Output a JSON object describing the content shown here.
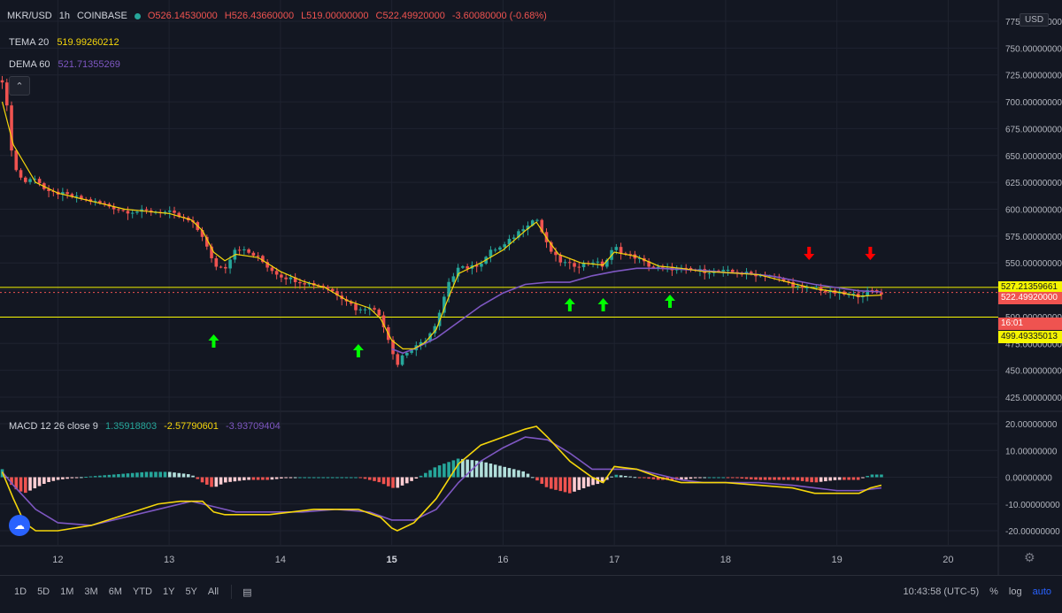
{
  "legend": {
    "symbol": "MKR/USD",
    "interval": "1h",
    "exchange": "COINBASE",
    "open": "O526.14530000",
    "high": "H526.43660000",
    "low": "L519.00000000",
    "close": "C522.49920000",
    "change": "-3.60080000 (-0.68%)"
  },
  "indicators": [
    {
      "name": "TEMA 20",
      "value": "519.99260212",
      "color": "#f5d60b"
    },
    {
      "name": "DEMA 60",
      "value": "521.71355269",
      "color": "#7e57c2"
    }
  ],
  "macd_legend": {
    "name": "MACD 12 26 close 9",
    "hist": "1.35918803",
    "macd": "-2.57790601",
    "signal": "-3.93709404"
  },
  "price_axis": {
    "currency": "USD",
    "ticks": [
      "775.00000000",
      "750.00000000",
      "725.00000000",
      "700.00000000",
      "675.00000000",
      "650.00000000",
      "625.00000000",
      "600.00000000",
      "575.00000000",
      "550.00000000",
      "525.00000000",
      "500.00000000",
      "475.00000000",
      "450.00000000",
      "425.00000000"
    ],
    "tick_values": [
      775,
      750,
      725,
      700,
      675,
      650,
      625,
      600,
      575,
      550,
      525,
      500,
      475,
      450,
      425
    ]
  },
  "macd_axis": {
    "ticks": [
      "20.00000000",
      "10.00000000",
      "0.00000000",
      "-10.00000000",
      "-20.00000000"
    ],
    "tick_values": [
      20,
      10,
      0,
      -10,
      -20
    ]
  },
  "price_tags": [
    {
      "label": "527.21359661",
      "bg": "#f5f500",
      "fg": "#131722",
      "value": 527.21
    },
    {
      "label": "522.49920000",
      "bg": "#ef5350",
      "fg": "#ffffff",
      "value": 522.5
    },
    {
      "label": "16:01",
      "bg": "#ef5350",
      "fg": "#ffffff",
      "value": 500.0
    },
    {
      "label": "499.49335013",
      "bg": "#f5f500",
      "fg": "#131722",
      "value": 499.49
    }
  ],
  "time_axis": {
    "labels": [
      "12",
      "13",
      "14",
      "15",
      "16",
      "17",
      "18",
      "19",
      "20"
    ],
    "bold": [
      "15"
    ]
  },
  "timeframes": [
    "1D",
    "5D",
    "1M",
    "3M",
    "6M",
    "YTD",
    "1Y",
    "5Y",
    "All"
  ],
  "bottom_right": {
    "clock": "10:43:58 (UTC-5)",
    "percent": "%",
    "log": "log",
    "auto": "auto"
  },
  "colors": {
    "up": "#26a69a",
    "down": "#ef5350",
    "tema": "#f5d60b",
    "dema": "#7e57c2",
    "hline": "#f5f500",
    "arrow_up": "#00ff00",
    "arrow_down": "#ff0000"
  },
  "chart_data": {
    "type": "candlestick",
    "x_unit": "day",
    "price_levels": [
      527.21,
      499.49
    ],
    "buy_signals_day": [
      13.4,
      14.7,
      16.6,
      16.9,
      17.5
    ],
    "sell_signals_day": [
      18.75,
      19.3
    ],
    "price_path": [
      [
        11.5,
        720
      ],
      [
        11.55,
        690
      ],
      [
        11.6,
        640
      ],
      [
        11.7,
        625
      ],
      [
        11.8,
        630
      ],
      [
        11.9,
        615
      ],
      [
        12.0,
        615
      ],
      [
        12.2,
        610
      ],
      [
        12.4,
        605
      ],
      [
        12.6,
        598
      ],
      [
        12.8,
        598
      ],
      [
        13.0,
        597
      ],
      [
        13.2,
        588
      ],
      [
        13.3,
        575
      ],
      [
        13.4,
        548
      ],
      [
        13.5,
        545
      ],
      [
        13.6,
        565
      ],
      [
        13.7,
        560
      ],
      [
        13.8,
        555
      ],
      [
        13.9,
        545
      ],
      [
        14.0,
        538
      ],
      [
        14.2,
        532
      ],
      [
        14.4,
        528
      ],
      [
        14.6,
        515
      ],
      [
        14.7,
        505
      ],
      [
        14.8,
        510
      ],
      [
        14.9,
        500
      ],
      [
        15.0,
        470
      ],
      [
        15.05,
        455
      ],
      [
        15.1,
        465
      ],
      [
        15.2,
        470
      ],
      [
        15.3,
        478
      ],
      [
        15.4,
        492
      ],
      [
        15.5,
        528
      ],
      [
        15.6,
        548
      ],
      [
        15.7,
        545
      ],
      [
        15.8,
        550
      ],
      [
        15.9,
        562
      ],
      [
        16.0,
        565
      ],
      [
        16.1,
        575
      ],
      [
        16.2,
        585
      ],
      [
        16.3,
        592
      ],
      [
        16.4,
        565
      ],
      [
        16.5,
        552
      ],
      [
        16.6,
        548
      ],
      [
        16.7,
        548
      ],
      [
        16.8,
        552
      ],
      [
        16.9,
        547
      ],
      [
        17.0,
        565
      ],
      [
        17.1,
        558
      ],
      [
        17.2,
        555
      ],
      [
        17.3,
        548
      ],
      [
        17.4,
        545
      ],
      [
        17.5,
        545
      ],
      [
        17.7,
        543
      ],
      [
        17.9,
        542
      ],
      [
        18.0,
        542
      ],
      [
        18.2,
        540
      ],
      [
        18.4,
        538
      ],
      [
        18.6,
        530
      ],
      [
        18.7,
        525
      ],
      [
        18.8,
        528
      ],
      [
        18.9,
        523
      ],
      [
        19.0,
        522
      ],
      [
        19.1,
        520
      ],
      [
        19.2,
        520
      ],
      [
        19.3,
        524
      ],
      [
        19.4,
        522
      ]
    ],
    "tema_path": [
      [
        11.5,
        700
      ],
      [
        11.6,
        660
      ],
      [
        11.8,
        625
      ],
      [
        12.0,
        615
      ],
      [
        12.2,
        610
      ],
      [
        12.4,
        605
      ],
      [
        12.6,
        600
      ],
      [
        12.8,
        598
      ],
      [
        13.0,
        596
      ],
      [
        13.2,
        590
      ],
      [
        13.3,
        580
      ],
      [
        13.4,
        560
      ],
      [
        13.5,
        552
      ],
      [
        13.6,
        558
      ],
      [
        13.8,
        555
      ],
      [
        14.0,
        542
      ],
      [
        14.2,
        533
      ],
      [
        14.4,
        527
      ],
      [
        14.6,
        515
      ],
      [
        14.8,
        508
      ],
      [
        14.9,
        498
      ],
      [
        15.0,
        478
      ],
      [
        15.1,
        470
      ],
      [
        15.2,
        470
      ],
      [
        15.3,
        476
      ],
      [
        15.4,
        488
      ],
      [
        15.5,
        515
      ],
      [
        15.6,
        540
      ],
      [
        15.8,
        550
      ],
      [
        16.0,
        562
      ],
      [
        16.2,
        580
      ],
      [
        16.3,
        588
      ],
      [
        16.4,
        572
      ],
      [
        16.5,
        558
      ],
      [
        16.7,
        550
      ],
      [
        16.9,
        548
      ],
      [
        17.0,
        560
      ],
      [
        17.2,
        556
      ],
      [
        17.4,
        547
      ],
      [
        17.6,
        545
      ],
      [
        17.8,
        542
      ],
      [
        18.0,
        541
      ],
      [
        18.3,
        539
      ],
      [
        18.6,
        531
      ],
      [
        18.8,
        526
      ],
      [
        19.0,
        523
      ],
      [
        19.2,
        519
      ],
      [
        19.4,
        520
      ]
    ],
    "dema_path": [
      [
        15.0,
        470
      ],
      [
        15.1,
        466
      ],
      [
        15.2,
        470
      ],
      [
        15.4,
        480
      ],
      [
        15.6,
        495
      ],
      [
        15.8,
        510
      ],
      [
        16.0,
        522
      ],
      [
        16.2,
        530
      ],
      [
        16.4,
        532
      ],
      [
        16.6,
        532
      ],
      [
        16.8,
        538
      ],
      [
        17.0,
        542
      ],
      [
        17.2,
        545
      ],
      [
        17.4,
        545
      ],
      [
        17.6,
        544
      ],
      [
        17.8,
        543
      ],
      [
        18.0,
        541
      ],
      [
        18.2,
        540
      ],
      [
        18.4,
        538
      ],
      [
        18.6,
        534
      ],
      [
        18.8,
        530
      ],
      [
        19.0,
        527
      ],
      [
        19.2,
        524
      ],
      [
        19.4,
        523
      ]
    ],
    "macd_path": [
      [
        11.5,
        2
      ],
      [
        11.6,
        -8
      ],
      [
        11.7,
        -17
      ],
      [
        11.8,
        -20
      ],
      [
        12.0,
        -20
      ],
      [
        12.3,
        -18
      ],
      [
        12.6,
        -14
      ],
      [
        12.9,
        -10
      ],
      [
        13.1,
        -9
      ],
      [
        13.3,
        -9
      ],
      [
        13.4,
        -13
      ],
      [
        13.5,
        -14
      ],
      [
        13.7,
        -14
      ],
      [
        13.9,
        -14
      ],
      [
        14.1,
        -13
      ],
      [
        14.3,
        -12
      ],
      [
        14.5,
        -12
      ],
      [
        14.7,
        -12
      ],
      [
        14.9,
        -15
      ],
      [
        15.0,
        -19
      ],
      [
        15.05,
        -20
      ],
      [
        15.2,
        -17
      ],
      [
        15.4,
        -8
      ],
      [
        15.6,
        5
      ],
      [
        15.8,
        12
      ],
      [
        16.0,
        15
      ],
      [
        16.2,
        18
      ],
      [
        16.3,
        19
      ],
      [
        16.4,
        15
      ],
      [
        16.6,
        6
      ],
      [
        16.8,
        0
      ],
      [
        16.9,
        -2
      ],
      [
        17.0,
        4
      ],
      [
        17.2,
        3
      ],
      [
        17.4,
        0
      ],
      [
        17.6,
        -2
      ],
      [
        17.8,
        -2
      ],
      [
        18.0,
        -2
      ],
      [
        18.3,
        -3
      ],
      [
        18.6,
        -4
      ],
      [
        18.8,
        -6
      ],
      [
        19.0,
        -6
      ],
      [
        19.2,
        -6
      ],
      [
        19.3,
        -4
      ],
      [
        19.4,
        -3
      ]
    ],
    "signal_path": [
      [
        11.5,
        2
      ],
      [
        11.6,
        -3
      ],
      [
        11.8,
        -12
      ],
      [
        12.0,
        -17
      ],
      [
        12.3,
        -18
      ],
      [
        12.6,
        -15
      ],
      [
        12.9,
        -12
      ],
      [
        13.2,
        -9
      ],
      [
        13.4,
        -11
      ],
      [
        13.6,
        -13
      ],
      [
        13.9,
        -13
      ],
      [
        14.2,
        -13
      ],
      [
        14.5,
        -12
      ],
      [
        14.8,
        -13
      ],
      [
        15.0,
        -16
      ],
      [
        15.2,
        -16
      ],
      [
        15.4,
        -12
      ],
      [
        15.6,
        -2
      ],
      [
        15.8,
        6
      ],
      [
        16.0,
        11
      ],
      [
        16.2,
        15
      ],
      [
        16.4,
        14
      ],
      [
        16.6,
        9
      ],
      [
        16.8,
        3
      ],
      [
        17.0,
        3
      ],
      [
        17.2,
        3
      ],
      [
        17.4,
        1
      ],
      [
        17.6,
        -1
      ],
      [
        17.8,
        -2
      ],
      [
        18.0,
        -2
      ],
      [
        18.3,
        -2
      ],
      [
        18.6,
        -3
      ],
      [
        18.8,
        -4
      ],
      [
        19.0,
        -5
      ],
      [
        19.2,
        -5
      ],
      [
        19.4,
        -4
      ]
    ],
    "hist_path": [
      [
        11.5,
        3
      ],
      [
        11.6,
        -4
      ],
      [
        11.7,
        -6
      ],
      [
        11.8,
        -4
      ],
      [
        11.9,
        -2
      ],
      [
        12.0,
        -1
      ],
      [
        12.2,
        0
      ],
      [
        12.5,
        1
      ],
      [
        12.8,
        2
      ],
      [
        13.0,
        2
      ],
      [
        13.2,
        1
      ],
      [
        13.3,
        -2
      ],
      [
        13.4,
        -4
      ],
      [
        13.5,
        -2
      ],
      [
        13.7,
        -1
      ],
      [
        13.9,
        -1
      ],
      [
        14.1,
        0
      ],
      [
        14.3,
        0
      ],
      [
        14.5,
        0
      ],
      [
        14.7,
        0
      ],
      [
        14.9,
        -2
      ],
      [
        15.0,
        -4
      ],
      [
        15.05,
        -4
      ],
      [
        15.2,
        -1
      ],
      [
        15.4,
        4
      ],
      [
        15.6,
        7
      ],
      [
        15.8,
        6
      ],
      [
        16.0,
        4
      ],
      [
        16.2,
        2
      ],
      [
        16.3,
        -1
      ],
      [
        16.4,
        -4
      ],
      [
        16.6,
        -6
      ],
      [
        16.8,
        -3
      ],
      [
        16.9,
        -2
      ],
      [
        17.0,
        1
      ],
      [
        17.2,
        0
      ],
      [
        17.4,
        -1
      ],
      [
        17.6,
        -1
      ],
      [
        17.8,
        0
      ],
      [
        18.0,
        0
      ],
      [
        18.3,
        -1
      ],
      [
        18.6,
        -1
      ],
      [
        18.8,
        -2
      ],
      [
        19.0,
        -1
      ],
      [
        19.2,
        -1
      ],
      [
        19.3,
        1
      ],
      [
        19.4,
        1
      ]
    ]
  }
}
